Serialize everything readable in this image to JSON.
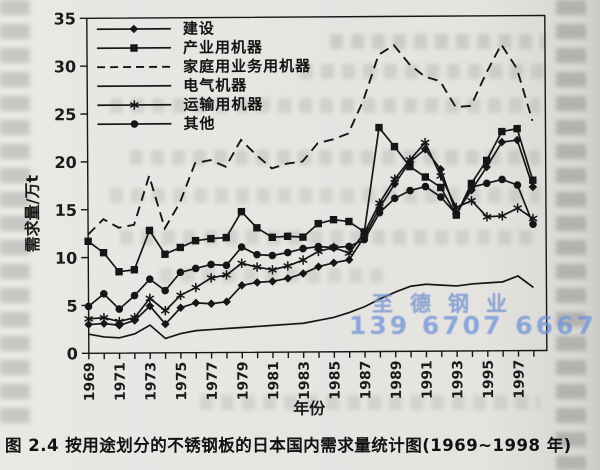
{
  "page": {
    "caption": "图 2.4  按用途划分的不锈钢板的日本国内需求量统计图(1969~1998 年)",
    "watermark_line1": "至德钢业",
    "watermark_line2": "139 6707 6667",
    "watermark_color": "#7392cd",
    "ink_color": "#161616",
    "paper_color": "#e6e5e2"
  },
  "chart_data": {
    "type": "line",
    "title": "",
    "xlabel": "年份",
    "ylabel": "需求量/万t",
    "ylim": [
      0,
      35
    ],
    "yticks": [
      0,
      5,
      10,
      15,
      20,
      25,
      30,
      35
    ],
    "grid": false,
    "legend_position": "top-left",
    "x_years": [
      1969,
      1970,
      1971,
      1972,
      1973,
      1974,
      1975,
      1976,
      1977,
      1978,
      1979,
      1980,
      1981,
      1982,
      1983,
      1984,
      1985,
      1986,
      1987,
      1988,
      1989,
      1990,
      1991,
      1992,
      1993,
      1994,
      1995,
      1996,
      1997,
      1998
    ],
    "xtick_labels": [
      "1969",
      "1971",
      "1973",
      "1975",
      "1977",
      "1979",
      "1981",
      "1983",
      "1985",
      "1987",
      "1989",
      "1991",
      "1993",
      "1995",
      "1997"
    ],
    "series": [
      {
        "id": "construction",
        "name": "建设",
        "marker": "diamond",
        "line": "solid",
        "values": [
          3.0,
          3.1,
          2.9,
          3.4,
          4.9,
          3.0,
          4.7,
          5.2,
          5.1,
          5.3,
          7.0,
          7.3,
          7.4,
          7.7,
          8.2,
          8.9,
          9.3,
          9.6,
          12.0,
          15.0,
          17.5,
          19.8,
          21.1,
          19.0,
          14.4,
          16.8,
          19.2,
          21.8,
          22.0,
          17.1
        ]
      },
      {
        "id": "industrial-machinery",
        "name": "产业用机器",
        "marker": "square",
        "line": "solid",
        "values": [
          11.7,
          10.5,
          8.5,
          8.7,
          12.8,
          10.3,
          11.0,
          11.7,
          11.9,
          12.0,
          14.7,
          13.0,
          12.0,
          12.1,
          12.0,
          13.4,
          13.8,
          13.6,
          12.5,
          23.4,
          21.4,
          19.3,
          18.2,
          17.1,
          14.2,
          17.5,
          19.9,
          22.9,
          23.2,
          17.8
        ]
      },
      {
        "id": "household-business-machinery",
        "name": "家庭用业务用机器",
        "marker": "none",
        "line": "dashed",
        "values": [
          12.4,
          14.0,
          13.1,
          13.4,
          18.5,
          13.0,
          15.7,
          19.8,
          20.1,
          19.4,
          22.2,
          20.6,
          19.2,
          19.7,
          19.9,
          21.8,
          22.2,
          22.8,
          26.3,
          31.0,
          32.0,
          30.0,
          28.7,
          28.2,
          25.5,
          25.6,
          29.0,
          32.0,
          29.5,
          24.0
        ]
      },
      {
        "id": "electrical-machinery",
        "name": "电气机器",
        "marker": "none",
        "line": "solid",
        "values": [
          2.0,
          1.7,
          1.6,
          2.0,
          2.9,
          1.5,
          2.0,
          2.3,
          2.4,
          2.5,
          2.6,
          2.7,
          2.8,
          2.9,
          3.0,
          3.3,
          3.6,
          4.1,
          4.7,
          5.5,
          6.2,
          6.8,
          7.0,
          6.9,
          6.8,
          7.0,
          7.1,
          7.2,
          7.8,
          6.6
        ]
      },
      {
        "id": "transport-machinery",
        "name": "运输用机器",
        "marker": "asterisk",
        "line": "solid",
        "values": [
          3.6,
          3.7,
          3.3,
          3.7,
          5.7,
          4.4,
          6.0,
          6.8,
          7.8,
          8.1,
          9.3,
          8.9,
          8.6,
          9.0,
          9.6,
          10.5,
          10.9,
          10.3,
          12.4,
          15.5,
          18.0,
          20.0,
          21.8,
          18.3,
          15.0,
          15.7,
          14.0,
          14.1,
          14.9,
          13.8
        ]
      },
      {
        "id": "other",
        "name": "其他",
        "marker": "circle",
        "line": "solid",
        "values": [
          4.9,
          6.2,
          4.6,
          6.0,
          7.7,
          6.5,
          8.4,
          8.8,
          9.2,
          9.1,
          11.0,
          10.2,
          10.1,
          10.4,
          10.8,
          11.0,
          10.9,
          11.0,
          11.7,
          14.5,
          16.0,
          16.8,
          17.2,
          16.1,
          14.3,
          17.1,
          17.5,
          17.9,
          17.3,
          13.2
        ]
      }
    ]
  }
}
